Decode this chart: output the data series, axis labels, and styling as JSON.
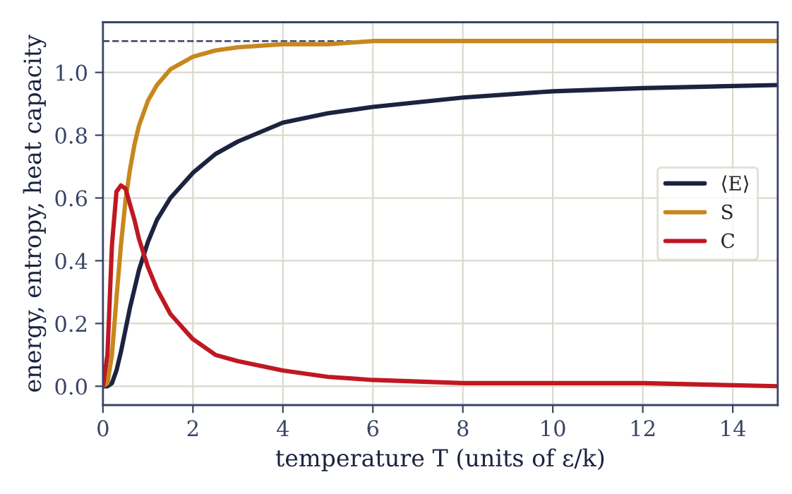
{
  "chart_data": {
    "type": "line",
    "xlabel": "temperature T (units of ε/k)",
    "ylabel": "energy, entropy, heat capacity",
    "x": [
      0,
      0.1,
      0.2,
      0.3,
      0.4,
      0.5,
      0.6,
      0.7,
      0.8,
      1.0,
      1.2,
      1.5,
      2,
      2.5,
      3,
      4,
      5,
      6,
      8,
      10,
      12,
      15
    ],
    "series": [
      {
        "name": "⟨E⟩",
        "color": "#1b2340",
        "values": [
          0,
          0,
          0.01,
          0.05,
          0.11,
          0.18,
          0.25,
          0.31,
          0.37,
          0.46,
          0.53,
          0.6,
          0.68,
          0.74,
          0.78,
          0.84,
          0.87,
          0.89,
          0.92,
          0.94,
          0.95,
          0.96
        ]
      },
      {
        "name": "S",
        "color": "#c8871e",
        "values": [
          0,
          0.01,
          0.1,
          0.28,
          0.45,
          0.59,
          0.69,
          0.77,
          0.83,
          0.91,
          0.96,
          1.01,
          1.05,
          1.07,
          1.08,
          1.09,
          1.09,
          1.1,
          1.1,
          1.1,
          1.1,
          1.1
        ]
      },
      {
        "name": "C",
        "color": "#c01822",
        "values": [
          0,
          0.1,
          0.45,
          0.62,
          0.64,
          0.63,
          0.58,
          0.53,
          0.47,
          0.38,
          0.31,
          0.23,
          0.15,
          0.1,
          0.08,
          0.05,
          0.03,
          0.02,
          0.01,
          0.01,
          0.01,
          0
        ]
      }
    ],
    "ref_lines": [
      {
        "axis": "y",
        "value": 1.1,
        "label": null,
        "color": "#3a4466",
        "line_style": "dashed"
      }
    ],
    "xlim": [
      0,
      15
    ],
    "ylim": [
      -0.06,
      1.16
    ],
    "xticks": [
      0,
      2,
      4,
      6,
      8,
      10,
      12,
      14
    ],
    "yticks": [
      {
        "value": 0,
        "label": "0.0"
      },
      0.2,
      0.4,
      0.6,
      0.8,
      {
        "value": 1,
        "label": "1.0"
      }
    ],
    "grid": true,
    "legend": "right",
    "marker": "none",
    "line_style": "solid"
  }
}
